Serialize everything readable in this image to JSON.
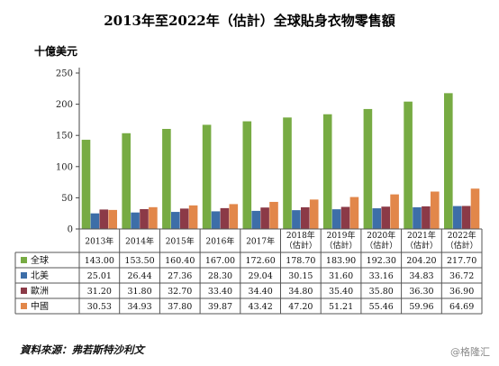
{
  "chart_data": {
    "type": "bar",
    "title": "2013年至2022年（估計）全球貼身衣物零售額",
    "ylabel": "十億美元",
    "ylim": [
      0,
      250
    ],
    "yticks": [
      0,
      50,
      100,
      150,
      200,
      250
    ],
    "grid": false,
    "legend": "table-left",
    "categories": [
      "2013年",
      "2014年",
      "2015年",
      "2016年",
      "2017年",
      "2018年\n（估計）",
      "2019年\n（估計）",
      "2020年\n（估計）",
      "2021年\n（估計）",
      "2022年\n（估計）"
    ],
    "series": [
      {
        "name": "全球",
        "color": "#77ab43",
        "values": [
          143.0,
          153.5,
          160.4,
          167.0,
          172.6,
          178.7,
          183.9,
          192.3,
          204.2,
          217.7
        ],
        "labels": [
          "143.00",
          "153.50",
          "160.40",
          "167.00",
          "172.60",
          "178.70",
          "183.90",
          "192.30",
          "204.20",
          "217.70"
        ]
      },
      {
        "name": "北美",
        "color": "#3d6ea8",
        "values": [
          25.01,
          26.44,
          27.36,
          28.3,
          29.04,
          30.15,
          31.6,
          33.16,
          34.83,
          36.72
        ],
        "labels": [
          "25.01",
          "26.44",
          "27.36",
          "28.30",
          "29.04",
          "30.15",
          "31.60",
          "33.16",
          "34.83",
          "36.72"
        ]
      },
      {
        "name": "歐洲",
        "color": "#8b3a47",
        "values": [
          31.2,
          31.8,
          32.7,
          33.4,
          34.4,
          34.8,
          35.4,
          35.8,
          36.3,
          36.9
        ],
        "labels": [
          "31.20",
          "31.80",
          "32.70",
          "33.40",
          "34.40",
          "34.80",
          "35.40",
          "35.80",
          "36.30",
          "36.90"
        ]
      },
      {
        "name": "中國",
        "color": "#e2874a",
        "values": [
          30.53,
          34.93,
          37.8,
          39.87,
          43.42,
          47.2,
          51.21,
          55.46,
          59.96,
          64.69
        ],
        "labels": [
          "30.53",
          "34.93",
          "37.80",
          "39.87",
          "43.42",
          "47.20",
          "51.21",
          "55.46",
          "59.96",
          "64.69"
        ]
      }
    ]
  },
  "source": "資料來源：弗若斯特沙利文",
  "watermark": "@格隆汇"
}
